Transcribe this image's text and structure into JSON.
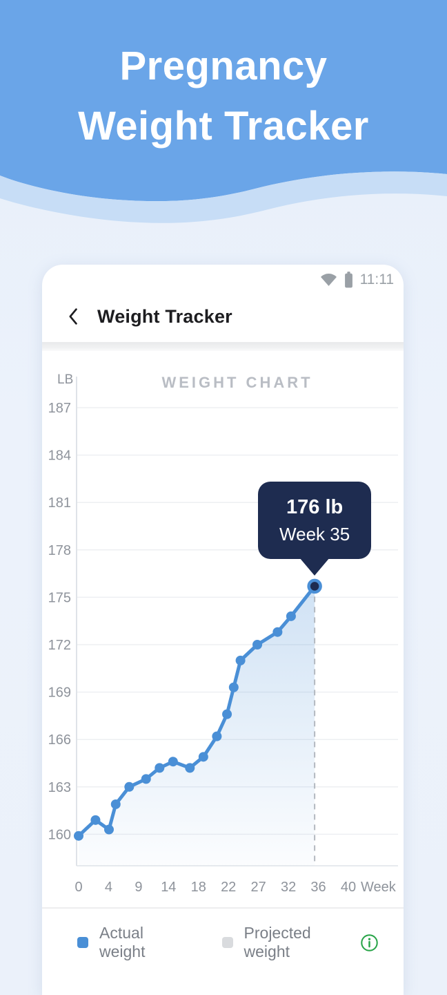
{
  "header": {
    "line1": "Pregnancy",
    "line2": "Weight Tracker",
    "bg_color": "#6aa5e8",
    "wave_band_color": "#c7ddf6",
    "text_color": "#ffffff"
  },
  "status_bar": {
    "time": "11:11",
    "icons": [
      "wifi-icon",
      "battery-icon"
    ],
    "icon_color": "#9aa0a6"
  },
  "nav": {
    "title": "Weight Tracker",
    "back_icon": "chevron-left-icon"
  },
  "chart_data": {
    "type": "line",
    "title": "WEIGHT CHART",
    "unit_label": "LB",
    "x_axis_suffix": "Week",
    "x_tick_labels": [
      0,
      4,
      9,
      14,
      18,
      22,
      27,
      32,
      36,
      40
    ],
    "y_tick_labels": [
      187,
      184,
      181,
      178,
      175,
      172,
      169,
      166,
      163,
      160
    ],
    "xlim": [
      0,
      40
    ],
    "grid": true,
    "legend_position": "bottom",
    "series": [
      {
        "name": "Actual weight",
        "color": "#4a8fd6",
        "points": [
          [
            0,
            159.9
          ],
          [
            2.5,
            160.9
          ],
          [
            4.5,
            160.3
          ],
          [
            5.5,
            161.9
          ],
          [
            7.5,
            163.0
          ],
          [
            10,
            163.5
          ],
          [
            12,
            164.2
          ],
          [
            14,
            164.6
          ],
          [
            16.5,
            164.2
          ],
          [
            18.5,
            164.9
          ],
          [
            20.5,
            166.2
          ],
          [
            22,
            167.6
          ],
          [
            23,
            169.3
          ],
          [
            24,
            171.0
          ],
          [
            26.5,
            172.0
          ],
          [
            29.5,
            172.8
          ],
          [
            31.5,
            173.8
          ],
          [
            35,
            175.7
          ]
        ]
      }
    ],
    "highlight": {
      "week": 35,
      "lb": 175.7,
      "value_label": "176 lb",
      "week_label": "Week 35",
      "tooltip_bg": "#1e2c50",
      "tooltip_text_color": "#ffffff"
    },
    "colors": {
      "grid": "#edeff2",
      "axis": "#dfe3e8",
      "tick_text": "#8e939b",
      "area_top": "rgba(74,143,214,0.26)",
      "area_bottom": "rgba(74,143,214,0.02)",
      "dashed_line": "#b3b8bf"
    }
  },
  "legend": {
    "items": [
      {
        "label": "Actual weight",
        "color": "#4a8fd6"
      },
      {
        "label": "Projected weight",
        "color": "#d9dbde"
      }
    ],
    "info_icon": "info-icon",
    "info_color": "#2aa54a"
  }
}
